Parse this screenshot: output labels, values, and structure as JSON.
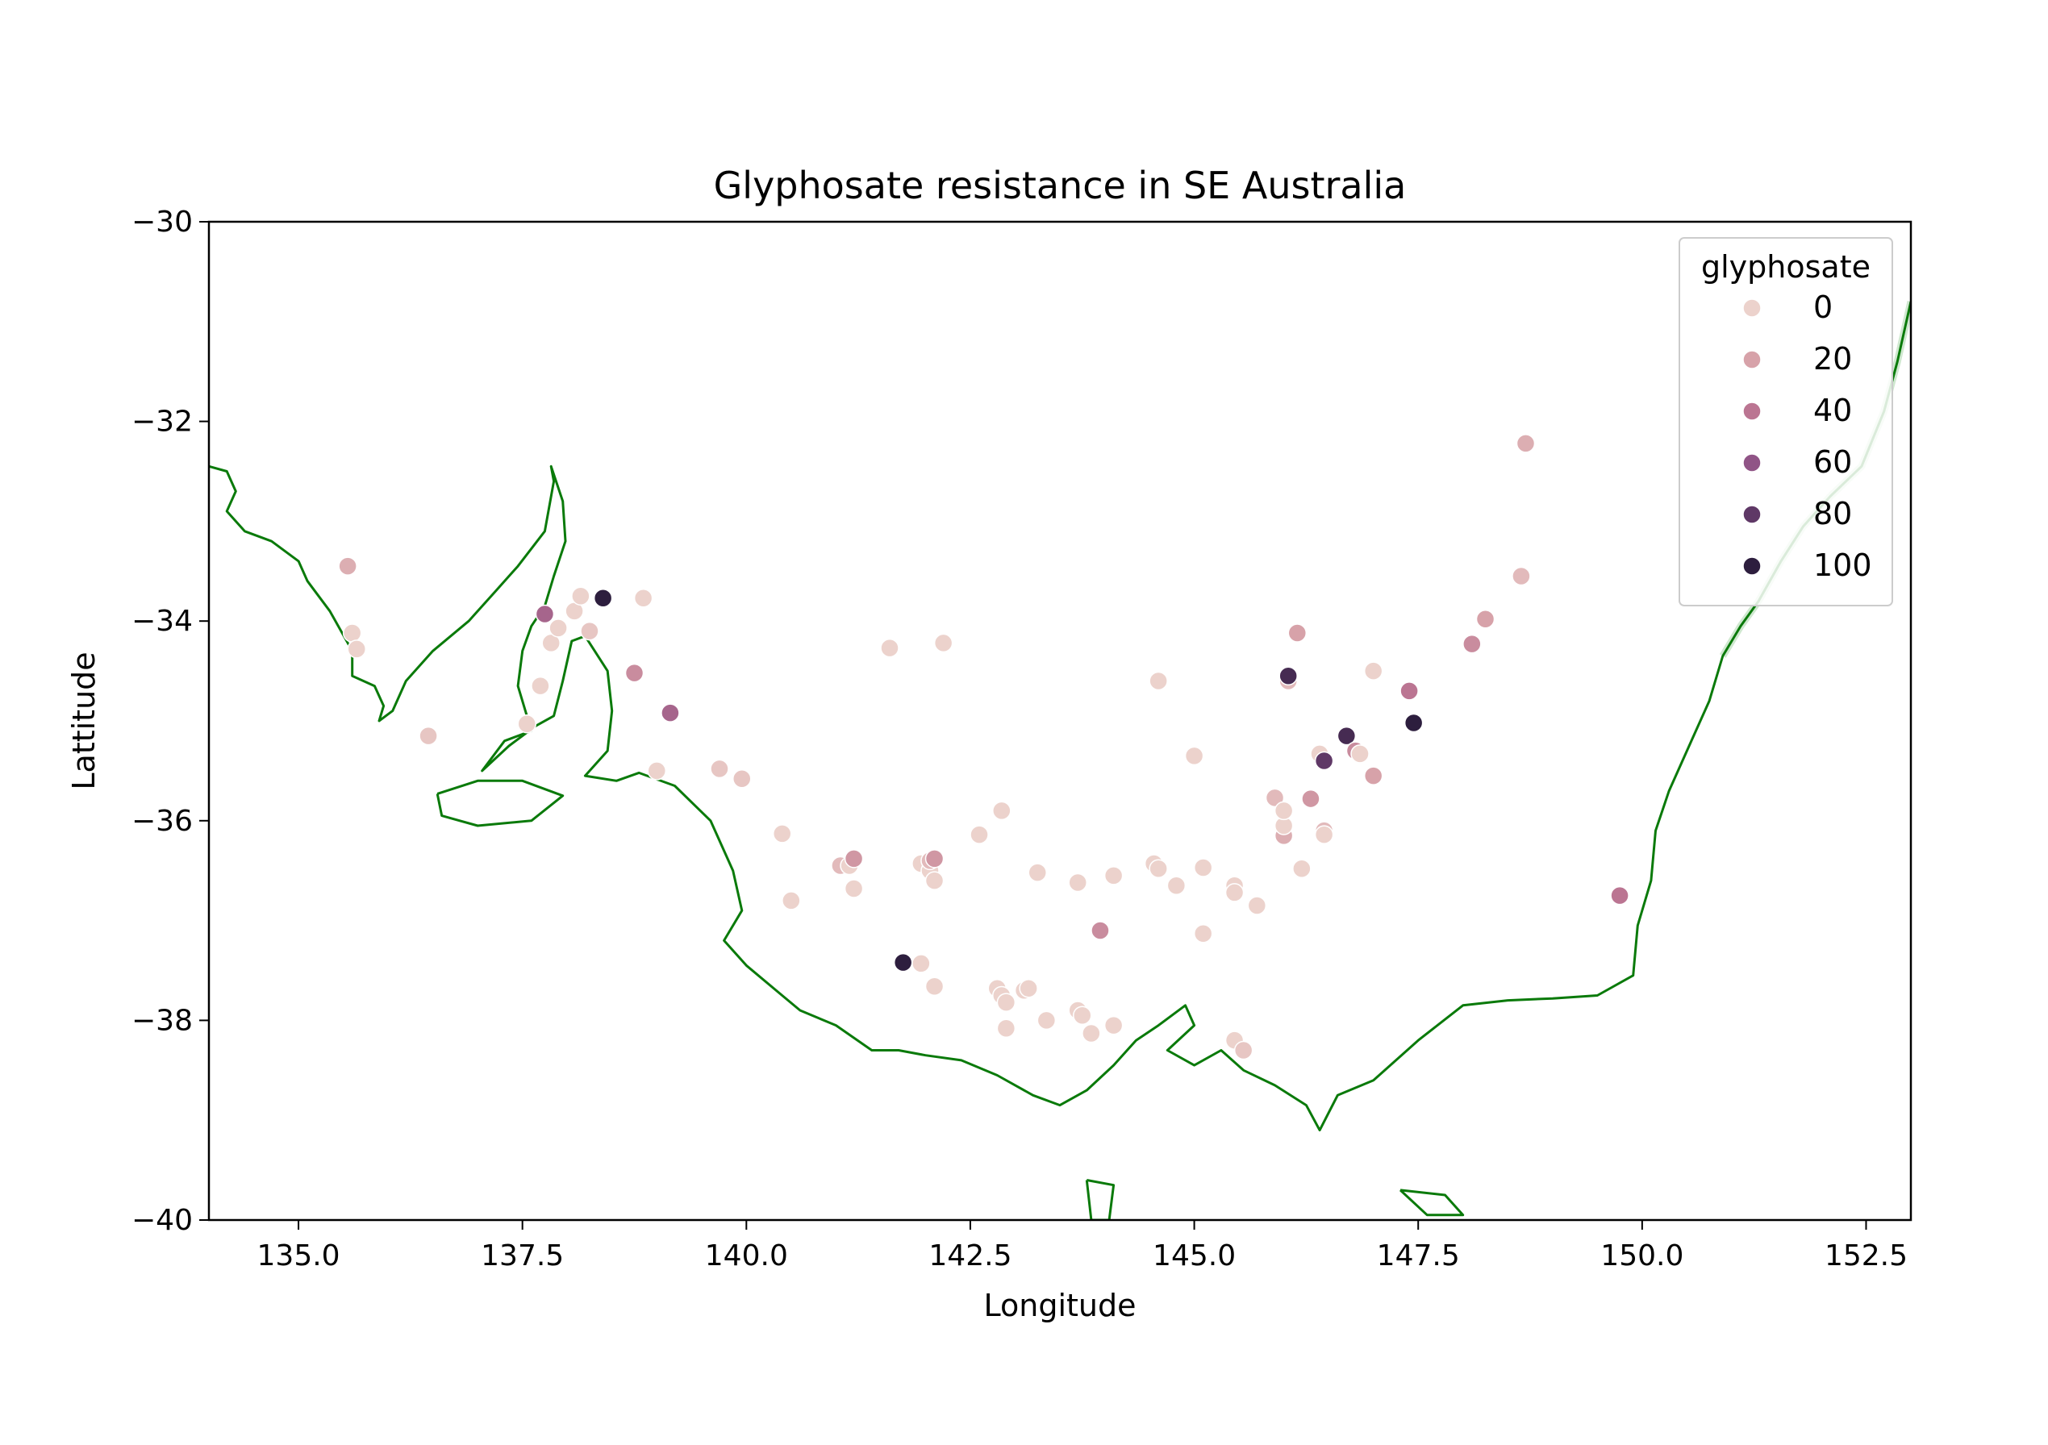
{
  "chart_data": {
    "type": "scatter",
    "title": "Glyphosate resistance in SE Australia",
    "xlabel": "Longitude",
    "ylabel": "Lattitude",
    "xlim": [
      134.0,
      153.0
    ],
    "ylim": [
      -40,
      -30
    ],
    "xticks": [
      135.0,
      137.5,
      140.0,
      142.5,
      145.0,
      147.5,
      150.0,
      152.5
    ],
    "xtick_labels": [
      "135.0",
      "137.5",
      "140.0",
      "142.5",
      "145.0",
      "147.5",
      "150.0",
      "152.5"
    ],
    "yticks": [
      -30,
      -32,
      -34,
      -36,
      -38,
      -40
    ],
    "ytick_labels": [
      "−30",
      "−32",
      "−34",
      "−36",
      "−38",
      "−40"
    ],
    "grid": false,
    "hue": "glyphosate",
    "legend": {
      "title": "glyphosate",
      "placement": "top-right",
      "entries": [
        {
          "label": "0",
          "value": 0,
          "color": "#ecd2cc"
        },
        {
          "label": "20",
          "value": 20,
          "color": "#d7a2a9"
        },
        {
          "label": "40",
          "value": 40,
          "color": "#bb7592"
        },
        {
          "label": "60",
          "value": 60,
          "color": "#905486"
        },
        {
          "label": "80",
          "value": 80,
          "color": "#5f3866"
        },
        {
          "label": "100",
          "value": 100,
          "color": "#2d1e3e"
        }
      ]
    },
    "coastline_color": "#0a7a0a",
    "points": [
      {
        "x": 135.55,
        "y": -33.45,
        "v": 15
      },
      {
        "x": 135.6,
        "y": -34.12,
        "v": 0
      },
      {
        "x": 135.65,
        "y": -34.28,
        "v": 0
      },
      {
        "x": 136.45,
        "y": -35.15,
        "v": 5
      },
      {
        "x": 137.55,
        "y": -35.03,
        "v": 0
      },
      {
        "x": 137.7,
        "y": -34.65,
        "v": 0
      },
      {
        "x": 137.75,
        "y": -33.93,
        "v": 50
      },
      {
        "x": 137.82,
        "y": -34.22,
        "v": 0
      },
      {
        "x": 137.9,
        "y": -34.07,
        "v": 0
      },
      {
        "x": 138.08,
        "y": -33.9,
        "v": 0
      },
      {
        "x": 138.15,
        "y": -33.75,
        "v": 0
      },
      {
        "x": 138.25,
        "y": -34.1,
        "v": 5
      },
      {
        "x": 138.4,
        "y": -33.77,
        "v": 100
      },
      {
        "x": 138.85,
        "y": -33.77,
        "v": 0
      },
      {
        "x": 138.75,
        "y": -34.52,
        "v": 30
      },
      {
        "x": 139.15,
        "y": -34.92,
        "v": 50
      },
      {
        "x": 139.0,
        "y": -35.5,
        "v": 0
      },
      {
        "x": 139.7,
        "y": -35.48,
        "v": 5
      },
      {
        "x": 139.95,
        "y": -35.58,
        "v": 5
      },
      {
        "x": 140.4,
        "y": -36.13,
        "v": 0
      },
      {
        "x": 140.5,
        "y": -36.8,
        "v": 0
      },
      {
        "x": 141.05,
        "y": -36.45,
        "v": 10
      },
      {
        "x": 141.15,
        "y": -36.45,
        "v": 0
      },
      {
        "x": 141.2,
        "y": -36.38,
        "v": 25
      },
      {
        "x": 141.2,
        "y": -36.68,
        "v": 0
      },
      {
        "x": 141.6,
        "y": -34.27,
        "v": 0
      },
      {
        "x": 142.2,
        "y": -34.22,
        "v": 0
      },
      {
        "x": 141.95,
        "y": -36.43,
        "v": 0
      },
      {
        "x": 142.05,
        "y": -36.5,
        "v": 0
      },
      {
        "x": 142.1,
        "y": -36.6,
        "v": 0
      },
      {
        "x": 142.05,
        "y": -36.4,
        "v": 10
      },
      {
        "x": 142.1,
        "y": -36.38,
        "v": 25
      },
      {
        "x": 141.75,
        "y": -37.42,
        "v": 100
      },
      {
        "x": 141.95,
        "y": -37.43,
        "v": 0
      },
      {
        "x": 142.1,
        "y": -37.66,
        "v": 0
      },
      {
        "x": 142.6,
        "y": -36.14,
        "v": 0
      },
      {
        "x": 142.85,
        "y": -35.9,
        "v": 0
      },
      {
        "x": 142.8,
        "y": -37.68,
        "v": 0
      },
      {
        "x": 142.85,
        "y": -37.75,
        "v": 0
      },
      {
        "x": 142.9,
        "y": -37.82,
        "v": 0
      },
      {
        "x": 143.1,
        "y": -37.7,
        "v": 0
      },
      {
        "x": 143.15,
        "y": -37.68,
        "v": 0
      },
      {
        "x": 142.9,
        "y": -38.08,
        "v": 0
      },
      {
        "x": 143.25,
        "y": -36.52,
        "v": 0
      },
      {
        "x": 143.35,
        "y": -38.0,
        "v": 0
      },
      {
        "x": 143.7,
        "y": -36.62,
        "v": 0
      },
      {
        "x": 143.7,
        "y": -37.9,
        "v": 0
      },
      {
        "x": 143.75,
        "y": -37.95,
        "v": 0
      },
      {
        "x": 143.85,
        "y": -38.13,
        "v": 0
      },
      {
        "x": 143.95,
        "y": -37.1,
        "v": 30
      },
      {
        "x": 144.1,
        "y": -36.55,
        "v": 0
      },
      {
        "x": 144.1,
        "y": -38.05,
        "v": 0
      },
      {
        "x": 144.55,
        "y": -36.43,
        "v": 0
      },
      {
        "x": 144.6,
        "y": -36.48,
        "v": 0
      },
      {
        "x": 144.6,
        "y": -34.6,
        "v": 0
      },
      {
        "x": 144.8,
        "y": -36.65,
        "v": 0
      },
      {
        "x": 145.0,
        "y": -35.35,
        "v": 0
      },
      {
        "x": 145.1,
        "y": -36.47,
        "v": 0
      },
      {
        "x": 145.1,
        "y": -37.13,
        "v": 0
      },
      {
        "x": 145.45,
        "y": -36.65,
        "v": 0
      },
      {
        "x": 145.45,
        "y": -36.72,
        "v": 0
      },
      {
        "x": 145.45,
        "y": -38.2,
        "v": 0
      },
      {
        "x": 145.55,
        "y": -38.3,
        "v": 5
      },
      {
        "x": 145.7,
        "y": -36.85,
        "v": 0
      },
      {
        "x": 145.9,
        "y": -35.77,
        "v": 10
      },
      {
        "x": 146.0,
        "y": -36.15,
        "v": 15
      },
      {
        "x": 146.0,
        "y": -36.05,
        "v": 0
      },
      {
        "x": 146.0,
        "y": -35.9,
        "v": 0
      },
      {
        "x": 146.05,
        "y": -34.6,
        "v": 10
      },
      {
        "x": 146.05,
        "y": -34.55,
        "v": 90
      },
      {
        "x": 146.15,
        "y": -34.12,
        "v": 20
      },
      {
        "x": 146.2,
        "y": -36.48,
        "v": 0
      },
      {
        "x": 146.3,
        "y": -35.78,
        "v": 25
      },
      {
        "x": 146.4,
        "y": -35.33,
        "v": 0
      },
      {
        "x": 146.45,
        "y": -36.1,
        "v": 10
      },
      {
        "x": 146.45,
        "y": -36.14,
        "v": 0
      },
      {
        "x": 146.45,
        "y": -35.4,
        "v": 80
      },
      {
        "x": 146.7,
        "y": -35.15,
        "v": 90
      },
      {
        "x": 146.8,
        "y": -35.3,
        "v": 30
      },
      {
        "x": 146.85,
        "y": -35.33,
        "v": 0
      },
      {
        "x": 147.0,
        "y": -35.55,
        "v": 20
      },
      {
        "x": 147.0,
        "y": -34.5,
        "v": 0
      },
      {
        "x": 147.4,
        "y": -34.7,
        "v": 40
      },
      {
        "x": 147.45,
        "y": -35.02,
        "v": 100
      },
      {
        "x": 148.1,
        "y": -34.23,
        "v": 30
      },
      {
        "x": 148.25,
        "y": -33.98,
        "v": 20
      },
      {
        "x": 148.65,
        "y": -33.55,
        "v": 10
      },
      {
        "x": 148.7,
        "y": -32.22,
        "v": 15
      },
      {
        "x": 149.75,
        "y": -36.75,
        "v": 40
      }
    ]
  }
}
